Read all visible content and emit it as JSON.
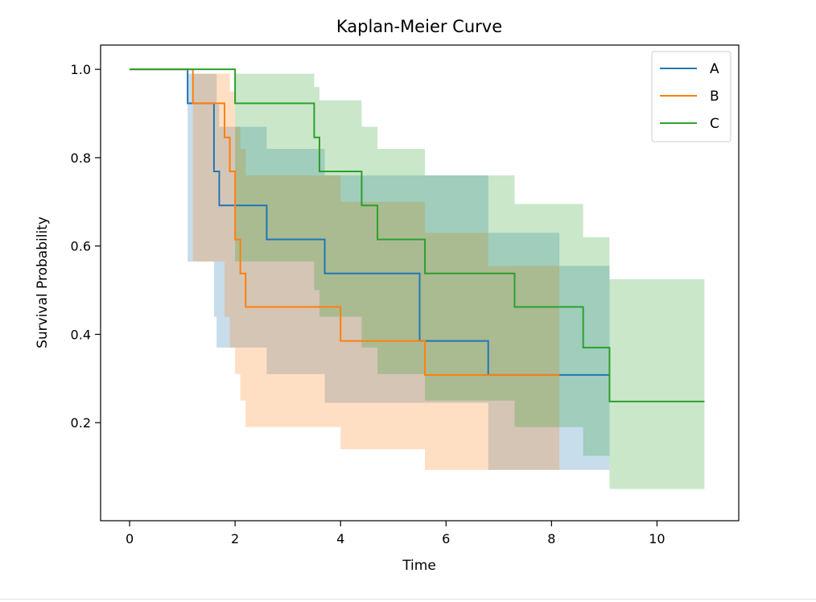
{
  "chart_data": {
    "type": "line",
    "title": "Kaplan-Meier Curve",
    "xlabel": "Time",
    "ylabel": "Survival Probability",
    "xlim": [
      -0.55,
      11.55
    ],
    "ylim": [
      -0.022,
      1.055
    ],
    "xticks": [
      0,
      2,
      4,
      6,
      8,
      10
    ],
    "yticks": [
      0.2,
      0.4,
      0.6,
      0.8,
      1.0
    ],
    "xtick_labels": [
      "0",
      "2",
      "4",
      "6",
      "8",
      "10"
    ],
    "ytick_labels": [
      "0.2",
      "0.4",
      "0.6",
      "0.8",
      "1.0"
    ],
    "grid": false,
    "legend_position": "top-right",
    "step": "post",
    "series": [
      {
        "name": "A",
        "color": "#1f77b4",
        "x": [
          0,
          1.1,
          1.6,
          1.7,
          2.6,
          3.7,
          5.5,
          6.8,
          8.15,
          9.1
        ],
        "y": [
          1.0,
          0.923,
          0.769,
          0.692,
          0.615,
          0.538,
          0.385,
          0.308,
          0.308,
          0.308
        ],
        "ci_x": [
          0,
          1.1,
          1.6,
          1.65,
          1.7,
          2.0,
          2.6,
          3.7,
          5.5,
          6.8,
          8.15,
          9.1
        ],
        "ci_upper": [
          1.0,
          0.99,
          0.99,
          0.92,
          0.87,
          0.87,
          0.82,
          0.76,
          0.76,
          0.63,
          0.555,
          0.555
        ],
        "ci_lower": [
          1.0,
          0.565,
          0.44,
          0.37,
          0.37,
          0.37,
          0.31,
          0.245,
          0.245,
          0.093,
          0.093,
          0.093
        ]
      },
      {
        "name": "B",
        "color": "#ff7f0e",
        "x": [
          0,
          1.2,
          1.8,
          1.9,
          2.0,
          2.1,
          2.2,
          4.0,
          5.6,
          8.15
        ],
        "y": [
          1.0,
          0.923,
          0.846,
          0.769,
          0.615,
          0.538,
          0.462,
          0.385,
          0.308,
          0.308
        ],
        "ci_x": [
          0,
          1.2,
          1.8,
          1.9,
          2.0,
          2.1,
          2.2,
          4.0,
          5.6,
          6.8,
          8.15
        ],
        "ci_upper": [
          1.0,
          0.99,
          0.99,
          0.95,
          0.87,
          0.82,
          0.76,
          0.7,
          0.63,
          0.555,
          0.555
        ],
        "ci_lower": [
          1.0,
          0.565,
          0.44,
          0.37,
          0.31,
          0.25,
          0.19,
          0.14,
          0.093,
          0.093,
          0.093
        ]
      },
      {
        "name": "C",
        "color": "#2ca02c",
        "x": [
          0,
          2.0,
          3.5,
          3.6,
          4.4,
          4.7,
          5.6,
          7.3,
          8.6,
          9.1,
          10.9
        ],
        "y": [
          1.0,
          0.923,
          0.846,
          0.769,
          0.692,
          0.615,
          0.538,
          0.462,
          0.37,
          0.248,
          0.248
        ],
        "ci_x": [
          0,
          2.0,
          3.5,
          3.6,
          4.4,
          4.7,
          5.6,
          7.3,
          8.6,
          9.1,
          10.9
        ],
        "ci_upper": [
          1.0,
          0.99,
          0.96,
          0.93,
          0.87,
          0.82,
          0.76,
          0.695,
          0.62,
          0.525,
          0.525
        ],
        "ci_lower": [
          1.0,
          0.565,
          0.5,
          0.44,
          0.37,
          0.31,
          0.25,
          0.19,
          0.125,
          0.05,
          0.05
        ]
      }
    ]
  }
}
